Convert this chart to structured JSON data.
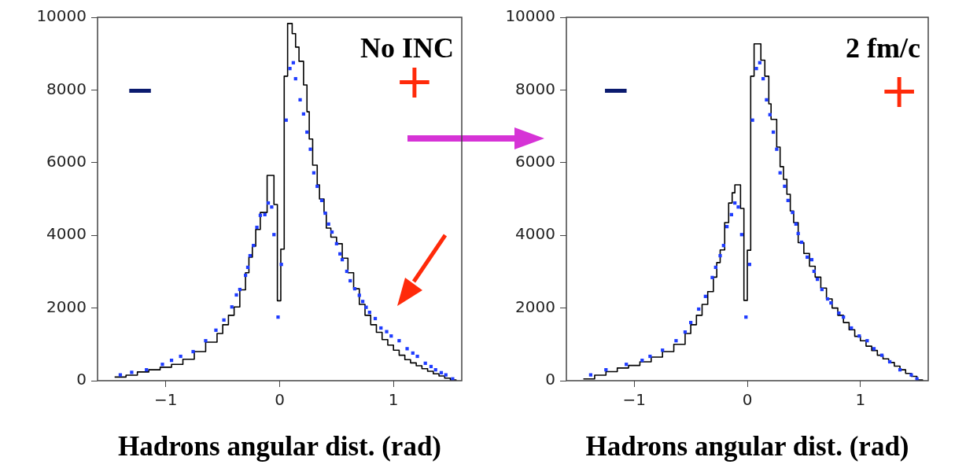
{
  "chart_data": [
    {
      "type": "step",
      "xlabel": "Hadrons angular dist. (rad)",
      "annotations": [
        "No INC",
        "−",
        "+"
      ],
      "xlim": [
        -1.6,
        1.6
      ],
      "ylim": [
        0,
        10000
      ],
      "xticks": [
        {
          "value": -1,
          "label": "−1"
        },
        {
          "value": 0,
          "label": "0"
        },
        {
          "value": 1,
          "label": "1"
        }
      ],
      "yticks": [
        0,
        2000,
        4000,
        6000,
        8000,
        10000
      ],
      "series": [
        {
          "color": "#000000",
          "x": [
            -1.45,
            -1.35,
            -1.25,
            -1.15,
            -1.05,
            -0.95,
            -0.85,
            -0.75,
            -0.65,
            -0.55,
            -0.5,
            -0.45,
            -0.4,
            -0.35,
            -0.3,
            -0.27,
            -0.24,
            -0.21,
            -0.17,
            -0.11,
            -0.05,
            -0.02,
            0.01,
            0.04,
            0.07,
            0.11,
            0.14,
            0.17,
            0.21,
            0.24,
            0.26,
            0.29,
            0.33,
            0.35,
            0.39,
            0.41,
            0.45,
            0.5,
            0.55,
            0.6,
            0.65,
            0.7,
            0.75,
            0.8,
            0.85,
            0.9,
            0.95,
            1.0,
            1.05,
            1.1,
            1.15,
            1.2,
            1.25,
            1.3,
            1.35,
            1.4,
            1.45,
            1.5,
            1.55
          ],
          "values": [
            100,
            150,
            240,
            300,
            370,
            450,
            590,
            800,
            1060,
            1300,
            1540,
            1800,
            2030,
            2500,
            2970,
            3400,
            3700,
            4160,
            4630,
            5650,
            4850,
            2200,
            3620,
            8380,
            9830,
            9550,
            9180,
            8790,
            8140,
            7400,
            6650,
            5930,
            5390,
            5000,
            4630,
            4200,
            3950,
            3770,
            3370,
            2970,
            2530,
            2100,
            1800,
            1540,
            1330,
            1130,
            980,
            840,
            700,
            580,
            490,
            410,
            330,
            260,
            190,
            130,
            70,
            20,
            0
          ]
        },
        {
          "type": "scatter",
          "color": "#1f3cff",
          "marker": "square",
          "x": [
            -1.4,
            -1.3,
            -1.17,
            -1.03,
            -0.95,
            -0.87,
            -0.76,
            -0.65,
            -0.56,
            -0.49,
            -0.42,
            -0.38,
            -0.35,
            -0.3,
            -0.28,
            -0.26,
            -0.23,
            -0.2,
            -0.17,
            -0.13,
            -0.1,
            -0.07,
            -0.05,
            -0.014,
            0.015,
            0.057,
            0.09,
            0.12,
            0.14,
            0.18,
            0.21,
            0.24,
            0.27,
            0.3,
            0.33,
            0.37,
            0.4,
            0.43,
            0.46,
            0.5,
            0.53,
            0.55,
            0.59,
            0.62,
            0.66,
            0.7,
            0.73,
            0.76,
            0.79,
            0.84,
            0.89,
            0.94,
            0.98,
            1.05,
            1.12,
            1.17,
            1.21,
            1.28,
            1.33,
            1.37,
            1.42,
            1.46,
            1.52
          ],
          "values": [
            160,
            230,
            300,
            450,
            560,
            670,
            800,
            1100,
            1390,
            1670,
            2030,
            2360,
            2510,
            2900,
            3120,
            3440,
            3720,
            4220,
            4550,
            4570,
            4890,
            4780,
            4020,
            1750,
            3200,
            7170,
            8590,
            8750,
            8310,
            7730,
            7340,
            6840,
            6370,
            5720,
            5350,
            4960,
            4610,
            4310,
            4090,
            3770,
            3490,
            3330,
            3010,
            2750,
            2530,
            2350,
            2180,
            2020,
            1880,
            1710,
            1450,
            1350,
            1230,
            1100,
            880,
            760,
            670,
            480,
            390,
            300,
            220,
            160,
            50
          ]
        }
      ]
    },
    {
      "type": "step",
      "xlabel": "Hadrons angular dist. (rad)",
      "annotations": [
        "2 fm/c",
        "−",
        "+"
      ],
      "xlim": [
        -1.6,
        1.6
      ],
      "ylim": [
        0,
        10000
      ],
      "xticks": [
        {
          "value": -1,
          "label": "−1"
        },
        {
          "value": 0,
          "label": "0"
        },
        {
          "value": 1,
          "label": "1"
        }
      ],
      "yticks": [
        0,
        2000,
        4000,
        6000,
        8000,
        10000
      ],
      "series": [
        {
          "color": "#000000",
          "x": [
            -1.45,
            -1.35,
            -1.25,
            -1.15,
            -1.05,
            -0.95,
            -0.85,
            -0.75,
            -0.65,
            -0.55,
            -0.5,
            -0.45,
            -0.4,
            -0.35,
            -0.3,
            -0.27,
            -0.24,
            -0.2,
            -0.165,
            -0.134,
            -0.11,
            -0.06,
            -0.03,
            0.0,
            0.03,
            0.06,
            0.12,
            0.155,
            0.19,
            0.21,
            0.26,
            0.29,
            0.32,
            0.35,
            0.38,
            0.41,
            0.45,
            0.5,
            0.55,
            0.6,
            0.65,
            0.7,
            0.75,
            0.8,
            0.85,
            0.9,
            0.95,
            1.0,
            1.05,
            1.1,
            1.15,
            1.2,
            1.25,
            1.3,
            1.35,
            1.4,
            1.45,
            1.5,
            1.55
          ],
          "values": [
            50,
            150,
            250,
            350,
            420,
            520,
            650,
            800,
            1000,
            1300,
            1540,
            1800,
            2100,
            2450,
            2850,
            3250,
            3600,
            4350,
            4890,
            5170,
            5390,
            4740,
            2210,
            3590,
            8380,
            9270,
            8820,
            8380,
            7620,
            7190,
            6430,
            5890,
            5540,
            5130,
            4670,
            4350,
            3800,
            3500,
            3150,
            2850,
            2550,
            2250,
            2000,
            1800,
            1600,
            1400,
            1220,
            1100,
            950,
            830,
            700,
            600,
            500,
            400,
            300,
            200,
            120,
            20,
            0
          ]
        },
        {
          "type": "scatter",
          "color": "#1f3cff",
          "marker": "square",
          "x": [
            -1.385,
            -1.25,
            -1.07,
            -0.93,
            -0.86,
            -0.75,
            -0.63,
            -0.55,
            -0.5,
            -0.43,
            -0.37,
            -0.31,
            -0.28,
            -0.24,
            -0.21,
            -0.18,
            -0.14,
            -0.11,
            -0.08,
            -0.05,
            -0.012,
            0.02,
            0.046,
            0.08,
            0.11,
            0.14,
            0.17,
            0.2,
            0.23,
            0.26,
            0.29,
            0.33,
            0.36,
            0.4,
            0.43,
            0.45,
            0.48,
            0.53,
            0.57,
            0.59,
            0.62,
            0.66,
            0.71,
            0.74,
            0.81,
            0.85,
            0.92,
            0.99,
            1.06,
            1.12,
            1.19,
            1.26,
            1.35,
            1.45,
            1.5
          ],
          "values": [
            160,
            300,
            450,
            560,
            670,
            840,
            1100,
            1340,
            1600,
            1970,
            2320,
            2840,
            3120,
            3440,
            3720,
            4240,
            4570,
            4890,
            4780,
            4020,
            1750,
            3200,
            7170,
            8590,
            8750,
            8310,
            7730,
            7320,
            6840,
            6370,
            5720,
            5350,
            4960,
            4630,
            4310,
            4050,
            3810,
            3400,
            3330,
            3010,
            2790,
            2510,
            2250,
            2140,
            1860,
            1750,
            1450,
            1230,
            1100,
            880,
            700,
            520,
            300,
            160,
            50
          ]
        }
      ]
    }
  ]
}
